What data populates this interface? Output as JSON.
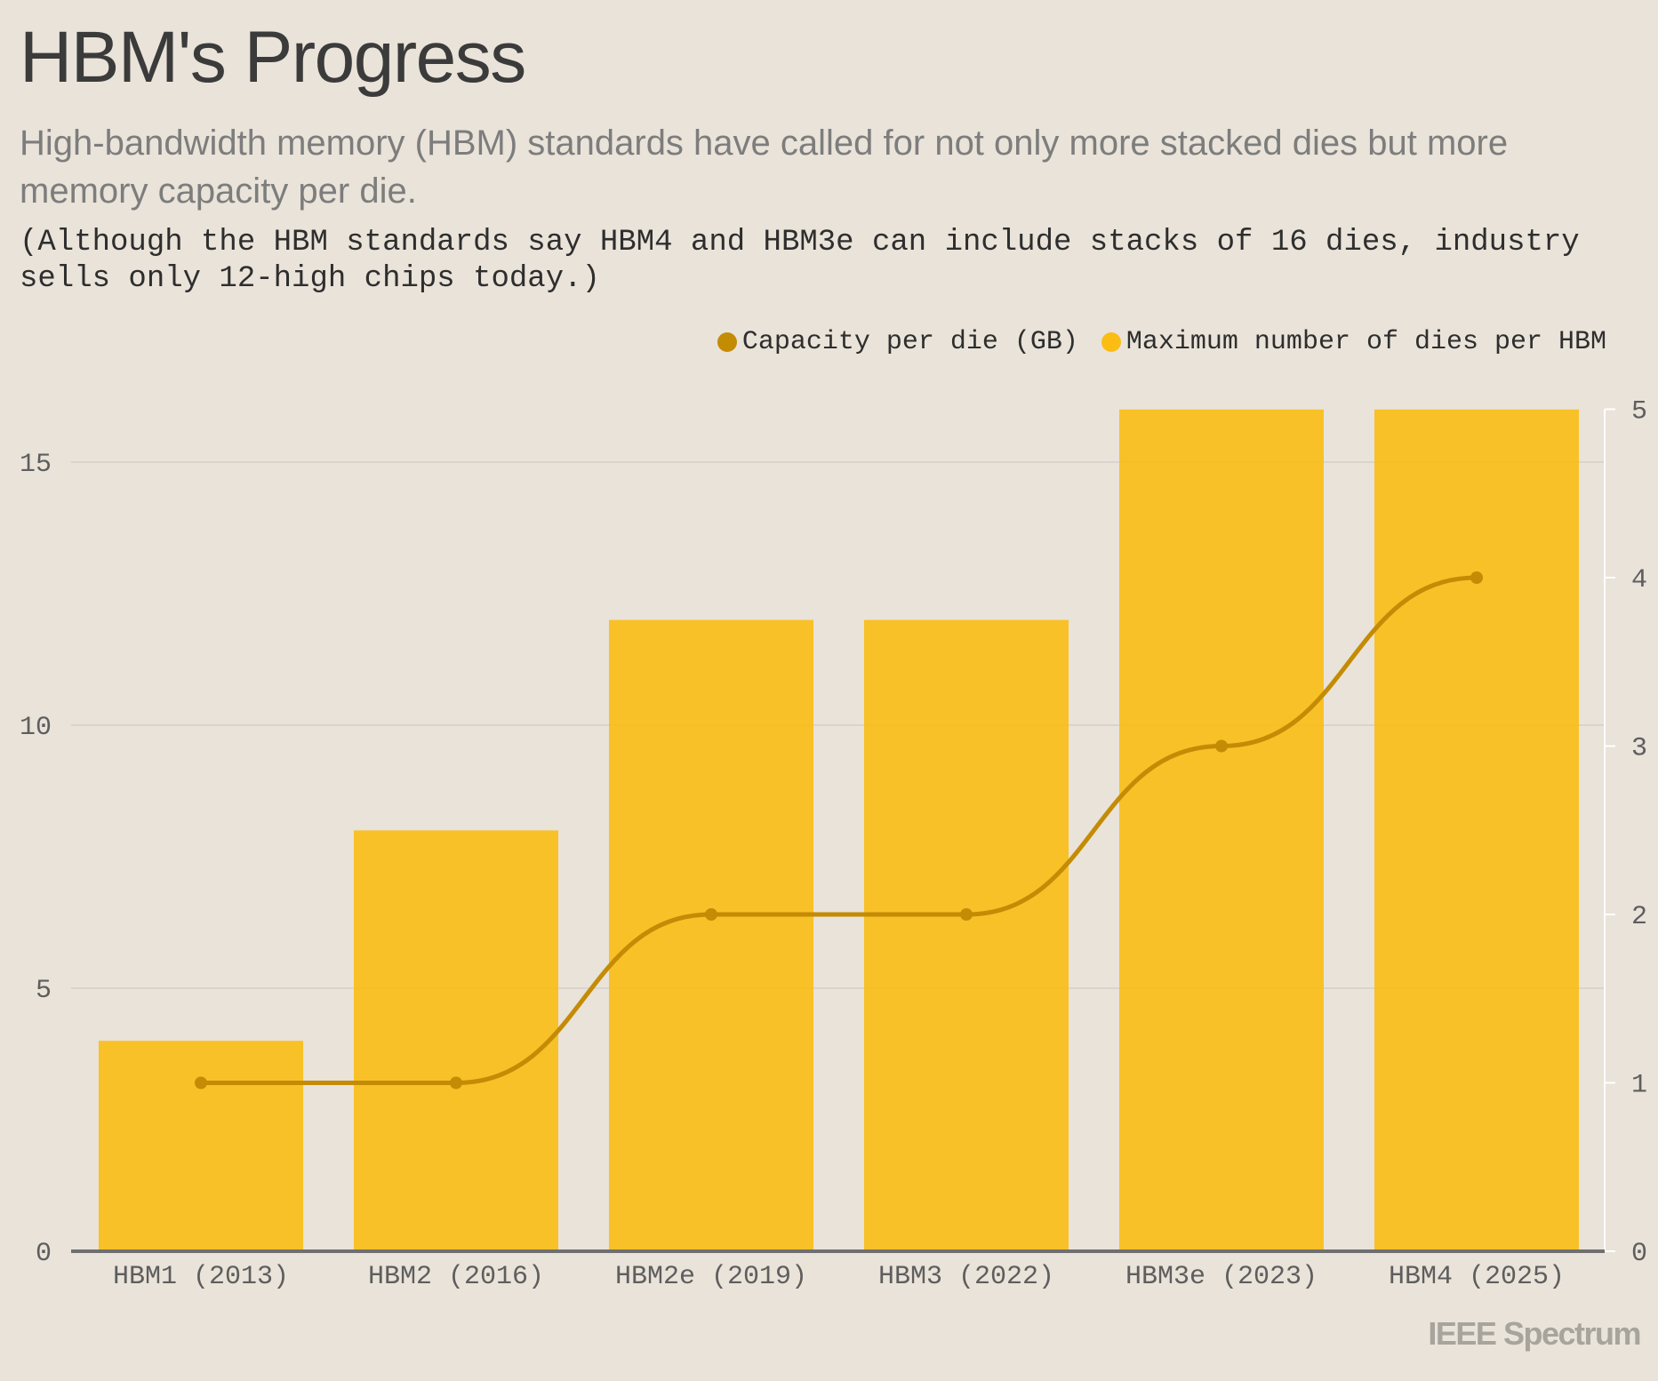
{
  "title": "HBM's Progress",
  "subtitle": "High-bandwidth memory (HBM) standards have called for not only more stacked dies but more memory capacity per die.",
  "note": "(Although the HBM standards say HBM4 and HBM3e can include stacks of 16 dies, industry sells only 12-high chips today.)",
  "legend": [
    {
      "label": "Capacity per die (GB)",
      "color": "#c48b05"
    },
    {
      "label": "Maximum number of dies per HBM",
      "color": "#fbbd14"
    }
  ],
  "logo": "IEEE Spectrum",
  "chart_data": {
    "type": "bar",
    "categories": [
      "HBM1 (2013)",
      "HBM2 (2016)",
      "HBM2e (2019)",
      "HBM3 (2022)",
      "HBM3e (2023)",
      "HBM4 (2025)"
    ],
    "series": [
      {
        "name": "Maximum number of dies per HBM",
        "type": "bar",
        "axis": "left",
        "color": "#fbbd14",
        "values": [
          4,
          8,
          12,
          12,
          16,
          16
        ]
      },
      {
        "name": "Capacity per die (GB)",
        "type": "line",
        "axis": "right",
        "color": "#c48b05",
        "values": [
          1,
          1,
          2,
          2,
          3,
          4
        ]
      }
    ],
    "left_axis": {
      "range": [
        0,
        16
      ],
      "ticks": [
        0,
        5,
        10,
        15
      ]
    },
    "right_axis": {
      "range": [
        0,
        5
      ],
      "ticks": [
        0,
        1,
        2,
        3,
        4,
        5
      ]
    },
    "grid": true,
    "legend_position": "top-right"
  }
}
